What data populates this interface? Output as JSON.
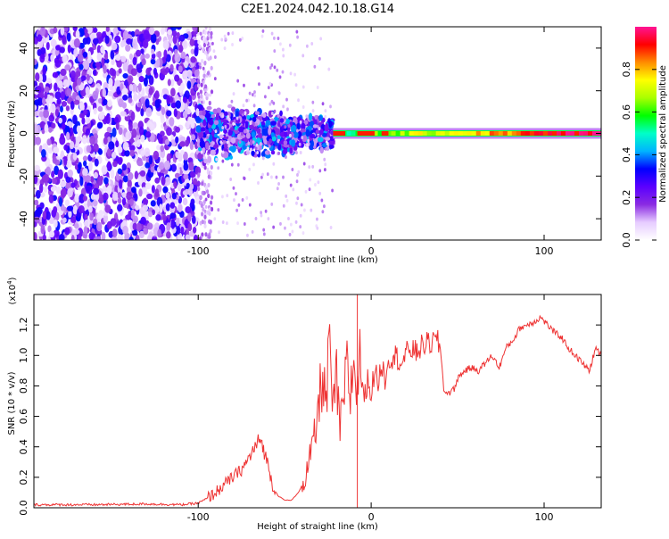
{
  "title": "C2E1.2024.042.10.18.G14",
  "chart_data": [
    {
      "type": "heatmap",
      "name": "spectrogram",
      "xlabel": "Height of straight line (km)",
      "ylabel": "Frequency (Hz)",
      "xlim": [
        -195,
        133
      ],
      "ylim": [
        -50,
        50
      ],
      "xticks": [
        -100,
        0,
        100
      ],
      "xtick_labels": [
        "-100",
        "0",
        "100"
      ],
      "yticks": [
        -40,
        -20,
        0,
        20,
        40
      ],
      "ytick_labels": [
        "-40",
        "-20",
        "0",
        "20",
        "40"
      ],
      "colorbar": {
        "label": "Normalized spectral amplitude",
        "range": [
          0,
          1
        ],
        "ticks": [
          0.0,
          0.2,
          0.4,
          0.6,
          0.8
        ],
        "tick_labels": [
          "0.0",
          "0.2",
          "0.4",
          "0.6",
          "0.8"
        ],
        "colors": [
          "#ffffff",
          "#e6ccff",
          "#8a2be2",
          "#5b00ff",
          "#0000ff",
          "#00b4ff",
          "#00ffc8",
          "#00ff00",
          "#aaff00",
          "#ffff00",
          "#ff8c00",
          "#ff0000",
          "#ff1493"
        ]
      },
      "regions": [
        {
          "desc": "broadband noise",
          "x": [
            -195,
            -100
          ],
          "freq": [
            -50,
            50
          ],
          "amplitude": [
            0.05,
            0.35
          ]
        },
        {
          "desc": "turbulent zone",
          "x": [
            -100,
            -22
          ],
          "freq": [
            -15,
            15
          ],
          "amplitude": [
            0.1,
            0.45
          ]
        },
        {
          "desc": "carrier line",
          "x": [
            -22,
            133
          ],
          "freq": [
            0,
            0
          ],
          "amplitude": [
            0.4,
            1.0
          ]
        }
      ]
    },
    {
      "type": "line",
      "name": "snr",
      "xlabel": "Height of straight line (km)",
      "ylabel": "SNR (10 * v/v)",
      "scale_label": "(x10",
      "scale_exp": "4",
      "scale_close": ")",
      "xlim": [
        -195,
        133
      ],
      "ylim": [
        0,
        1.4
      ],
      "xticks": [
        -100,
        0,
        100
      ],
      "xtick_labels": [
        "-100",
        "0",
        "100"
      ],
      "yticks": [
        0.0,
        0.2,
        0.4,
        0.6,
        0.8,
        1.0,
        1.2
      ],
      "ytick_labels": [
        "0.0",
        "0.2",
        "0.4",
        "0.6",
        "0.8",
        "1.0",
        "1.2"
      ],
      "color": "#ee3333",
      "series": [
        {
          "name": "SNR",
          "x": [
            -195,
            -160,
            -130,
            -110,
            -100,
            -95,
            -90,
            -85,
            -80,
            -75,
            -72,
            -68,
            -64,
            -60,
            -57,
            -54,
            -50,
            -46,
            -42,
            -38,
            -35,
            -32,
            -30,
            -28,
            -26,
            -24,
            -22,
            -20,
            -18,
            -16,
            -14,
            -12,
            -10,
            -8,
            -6,
            -4,
            -2,
            0,
            2,
            4,
            6,
            8,
            10,
            14,
            18,
            22,
            26,
            30,
            34,
            38,
            40,
            42,
            44,
            46,
            48,
            50,
            54,
            58,
            62,
            66,
            70,
            74,
            78,
            82,
            86,
            90,
            94,
            98,
            102,
            106,
            110,
            114,
            118,
            122,
            126,
            130,
            133
          ],
          "y": [
            0.02,
            0.02,
            0.025,
            0.02,
            0.03,
            0.06,
            0.1,
            0.15,
            0.2,
            0.25,
            0.3,
            0.38,
            0.45,
            0.3,
            0.15,
            0.08,
            0.05,
            0.05,
            0.1,
            0.2,
            0.35,
            0.5,
            0.7,
            0.9,
            0.65,
            1.1,
            0.6,
            0.85,
            0.5,
            0.7,
            0.9,
            0.75,
            0.95,
            0.8,
            1.0,
            0.7,
            0.85,
            0.75,
            0.9,
            0.82,
            0.95,
            0.85,
            0.98,
            1.0,
            0.95,
            1.05,
            1.02,
            1.07,
            1.08,
            1.1,
            1.05,
            0.78,
            0.75,
            0.76,
            0.78,
            0.85,
            0.9,
            0.92,
            0.9,
            0.95,
            1.0,
            0.92,
            1.05,
            1.1,
            1.18,
            1.2,
            1.22,
            1.25,
            1.2,
            1.15,
            1.12,
            1.05,
            1.0,
            0.95,
            0.9,
            1.05,
            1.0
          ]
        }
      ]
    }
  ]
}
